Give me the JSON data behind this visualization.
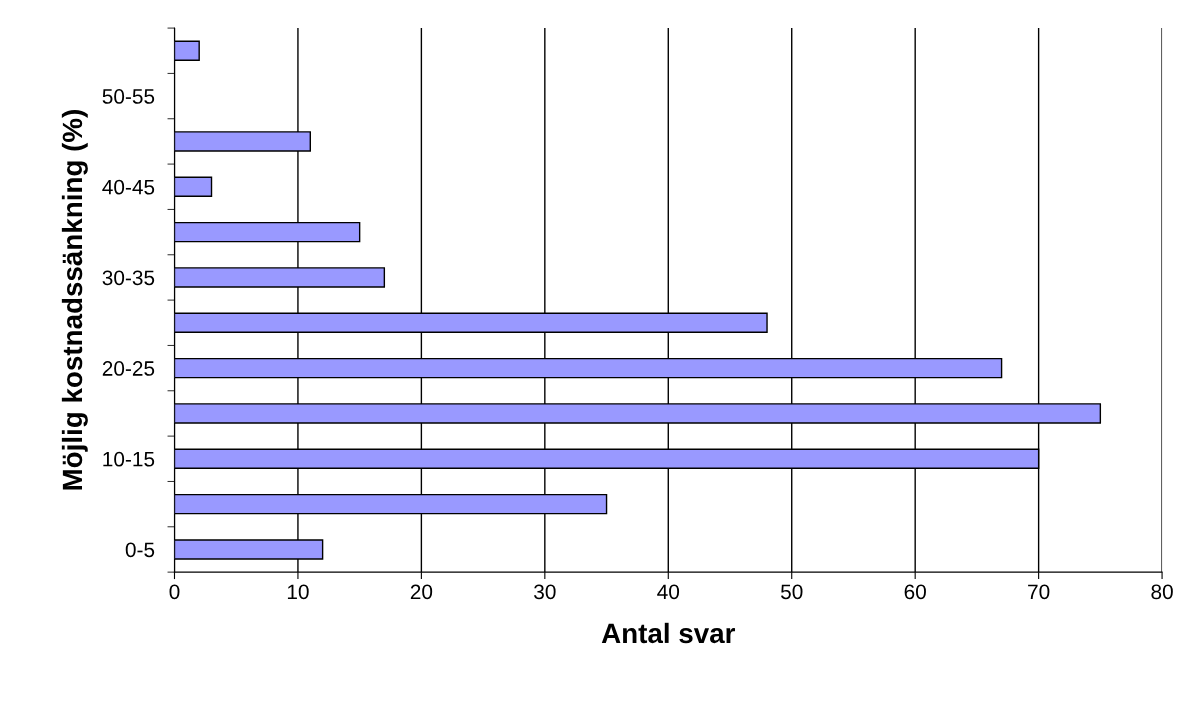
{
  "chart_data": {
    "type": "bar",
    "orientation": "horizontal",
    "xlabel": "Antal svar",
    "ylabel": "Möjlig kostnadssänkning (%)",
    "categories": [
      null,
      "50-55",
      null,
      "40-45",
      null,
      "30-35",
      null,
      "20-25",
      null,
      "10-15",
      null,
      "0-5"
    ],
    "values": [
      2,
      0,
      11,
      3,
      15,
      17,
      48,
      67,
      75,
      70,
      35,
      12
    ],
    "color": "#9999ff",
    "xlim": [
      0,
      80
    ],
    "xticks": [
      0,
      10,
      20,
      30,
      40,
      50,
      60,
      70,
      80
    ],
    "grid": "x",
    "legend": false
  }
}
